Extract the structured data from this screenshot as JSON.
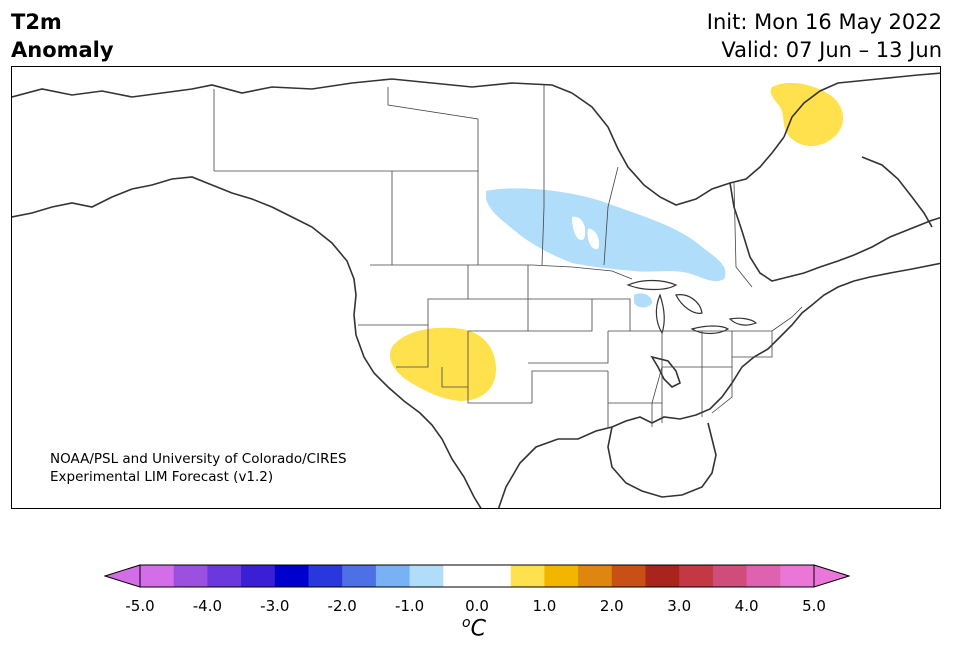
{
  "header": {
    "title_line1": "T2m",
    "title_line2": "Anomaly",
    "init": "Init: Mon 16 May 2022",
    "valid": "Valid: 07 Jun – 13 Jun"
  },
  "credit": {
    "line1": "NOAA/PSL and University of Colorado/CIRES",
    "line2": "Experimental LIM Forecast (v1.2)"
  },
  "legend": {
    "unit_sup": "o",
    "unit": "C",
    "ticks": [
      "-5.0",
      "-4.0",
      "-3.0",
      "-2.0",
      "-1.0",
      "0.0",
      "1.0",
      "2.0",
      "3.0",
      "4.0",
      "5.0"
    ],
    "colors": [
      "#d36ee8",
      "#9c50e0",
      "#6a38dc",
      "#3a1fd4",
      "#0000cd",
      "#2838dc",
      "#4e70e6",
      "#78b2f4",
      "#b0ddfa",
      "#ffffff",
      "#ffffff",
      "#ffe04d",
      "#f2b600",
      "#de8610",
      "#c85016",
      "#a8241c",
      "#c43844",
      "#d04c7a",
      "#de62b0",
      "#ea76d8"
    ],
    "low_extend_color": "#d36ee8",
    "high_extend_color": "#ea76d8"
  },
  "anomalies": [
    {
      "region": "northern Quebec / Ungava",
      "color": "#ffe04d",
      "category": "+0.5 to +1.0"
    },
    {
      "region": "Canadian Prairies to Ontario",
      "color": "#b0ddfa",
      "category": "-1.0 to -0.5"
    },
    {
      "region": "US Southwest (Arizona/Utah/Nevada)",
      "color": "#ffe04d",
      "category": "+0.5 to +1.0"
    }
  ]
}
